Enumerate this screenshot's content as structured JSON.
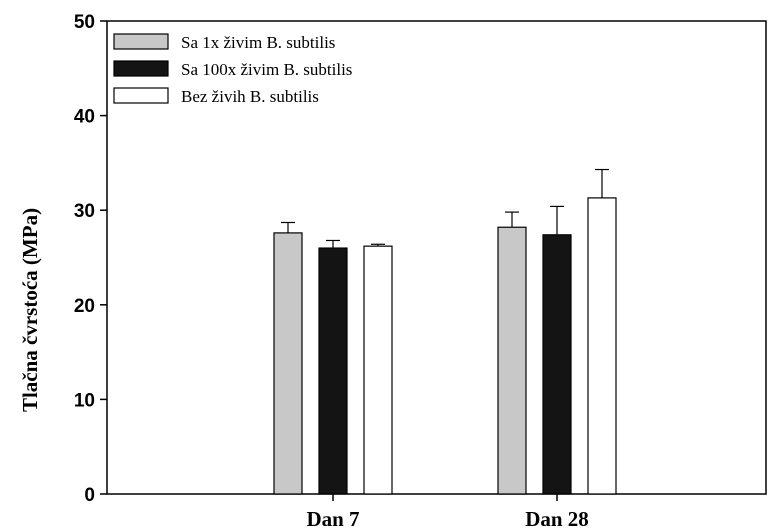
{
  "chart_data": {
    "type": "bar",
    "title": "",
    "xlabel": "",
    "ylabel": "Tlačna čvrstoća (MPa)",
    "ylim": [
      0,
      50
    ],
    "yticks": [
      0,
      10,
      20,
      30,
      40,
      50
    ],
    "categories": [
      "Dan 7",
      "Dan 28"
    ],
    "series": [
      {
        "name": "Sa 1x živim B. subtilis",
        "color": "#c8c8c8",
        "values": [
          27.6,
          28.2
        ],
        "errors": [
          1.1,
          1.6
        ]
      },
      {
        "name": "Sa 100x živim B. subtilis",
        "color": "#141414",
        "values": [
          26.0,
          27.4
        ],
        "errors": [
          0.8,
          3.0
        ]
      },
      {
        "name": "Bez živih B. subtilis",
        "color": "#ffffff",
        "values": [
          26.2,
          31.3
        ],
        "errors": [
          0.2,
          3.0
        ]
      }
    ],
    "legend": "top-left",
    "grid": false
  }
}
